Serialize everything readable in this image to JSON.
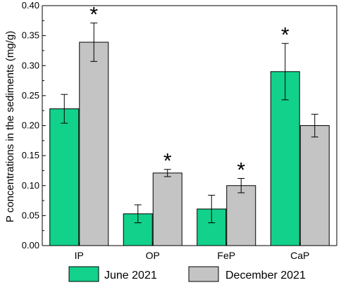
{
  "chart_data": {
    "type": "bar",
    "categories": [
      "IP",
      "OP",
      "FeP",
      "CaP"
    ],
    "series": [
      {
        "name": "June 2021",
        "values": [
          0.228,
          0.053,
          0.061,
          0.29
        ],
        "errors": [
          0.024,
          0.015,
          0.023,
          0.047
        ]
      },
      {
        "name": "December 2021",
        "values": [
          0.339,
          0.121,
          0.1,
          0.2
        ],
        "errors": [
          0.032,
          0.006,
          0.012,
          0.019
        ]
      }
    ],
    "significance": [
      "*",
      "*",
      "*",
      "*"
    ],
    "xlabel": "",
    "ylabel": "P concentrations in the sediments (mg/g)",
    "ylim": [
      0,
      0.4
    ],
    "yticks": [
      "0.00",
      "0.05",
      "0.10",
      "0.15",
      "0.20",
      "0.25",
      "0.30",
      "0.35",
      "0.40"
    ],
    "legend_position": "bottom",
    "colors": {
      "June 2021": "#12d18a",
      "December 2021": "#c4c4c4"
    }
  }
}
